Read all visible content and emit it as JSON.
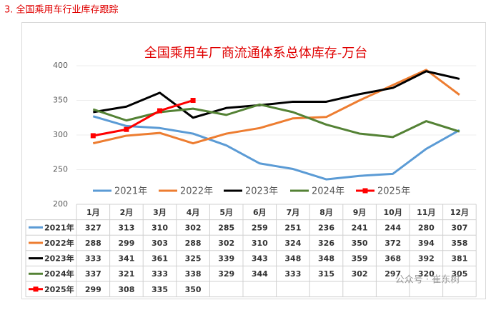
{
  "heading": "3. 全国乘用车行业库存跟踪",
  "watermark": "公众号 · 崔东树",
  "chart_data": {
    "type": "line",
    "title": "全国乘用车厂商流通体系总体库存-万台",
    "categories": [
      "1月",
      "2月",
      "3月",
      "4月",
      "5月",
      "6月",
      "7月",
      "8月",
      "9月",
      "10月",
      "11月",
      "12月"
    ],
    "ylim": [
      200,
      400
    ],
    "yticks": [
      200,
      250,
      300,
      350,
      400
    ],
    "grid": true,
    "series": [
      {
        "name": "2021年",
        "color": "#5b9bd5",
        "values": [
          327,
          313,
          310,
          302,
          285,
          259,
          251,
          236,
          241,
          244,
          280,
          307
        ]
      },
      {
        "name": "2022年",
        "color": "#ed7d31",
        "values": [
          288,
          299,
          303,
          288,
          302,
          310,
          324,
          326,
          350,
          372,
          394,
          358
        ]
      },
      {
        "name": "2023年",
        "color": "#000000",
        "values": [
          333,
          341,
          361,
          325,
          339,
          343,
          348,
          348,
          359,
          368,
          392,
          381
        ]
      },
      {
        "name": "2024年",
        "color": "#548235",
        "values": [
          337,
          321,
          333,
          338,
          329,
          344,
          333,
          315,
          302,
          297,
          320,
          305
        ]
      },
      {
        "name": "2025年",
        "color": "#ff0000",
        "marker": "square",
        "values": [
          299,
          308,
          335,
          350,
          null,
          null,
          null,
          null,
          null,
          null,
          null,
          null
        ]
      }
    ]
  }
}
